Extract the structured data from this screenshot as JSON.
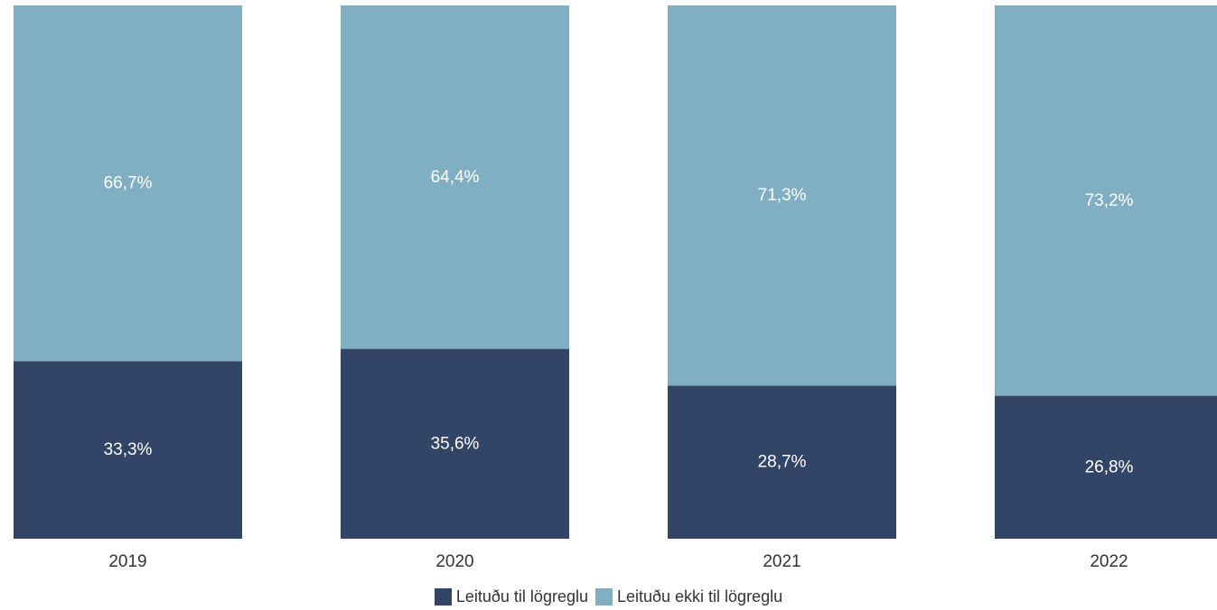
{
  "chart_data": {
    "type": "bar",
    "stacked": true,
    "normalized": true,
    "categories": [
      "2019",
      "2020",
      "2021",
      "2022"
    ],
    "series": [
      {
        "name": "Leituðu til lögreglu",
        "color": "#324567",
        "values": [
          33.3,
          35.6,
          28.7,
          26.8
        ],
        "labels": [
          "33,3%",
          "35,6%",
          "28,7%",
          "26,8%"
        ]
      },
      {
        "name": "Leituðu ekki til lögreglu",
        "color": "#80aec2",
        "values": [
          66.7,
          64.4,
          71.3,
          73.2
        ],
        "labels": [
          "66,7%",
          "64,4%",
          "71,3%",
          "73,2%"
        ]
      }
    ],
    "ylim": [
      0,
      100
    ],
    "grid": false,
    "legend_position": "bottom"
  }
}
